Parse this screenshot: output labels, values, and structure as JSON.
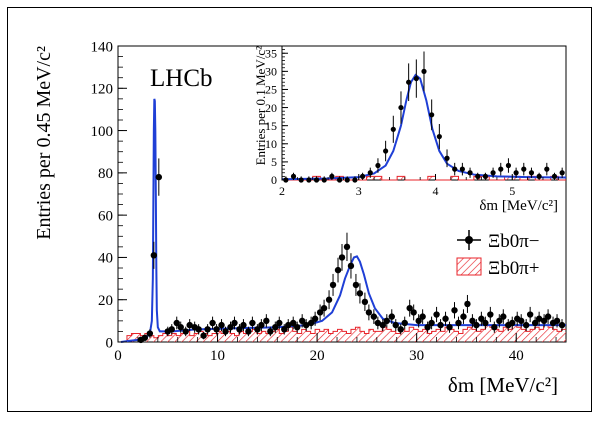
{
  "chart_data": [
    {
      "type": "scatter",
      "panel": "main",
      "experiment": "LHCb",
      "xlabel": "δm [MeV/c²]",
      "ylabel": "Entries per 0.45 MeV/c²",
      "xlim": [
        0,
        45
      ],
      "ylim": [
        0,
        140
      ],
      "xticks": [
        0,
        10,
        20,
        30,
        40
      ],
      "yticks": [
        0,
        20,
        40,
        60,
        80,
        100,
        120,
        140
      ],
      "grid": false,
      "legend_position": "right-middle",
      "legend": [
        {
          "label": "Ξb0π−",
          "style": "points-with-error-bars",
          "color": "#000000"
        },
        {
          "label": "Ξb0π+",
          "style": "hatched-histogram",
          "color": "#e8232a"
        }
      ],
      "series": [
        {
          "name": "Ξb0π−",
          "style": "points",
          "color": "#000000",
          "x": [
            2.3,
            2.7,
            3.2,
            3.6,
            4.1,
            5.0,
            5.4,
            5.9,
            6.3,
            6.8,
            7.2,
            7.7,
            8.1,
            8.6,
            9.0,
            9.5,
            9.9,
            10.4,
            10.8,
            11.3,
            11.7,
            12.2,
            12.6,
            13.1,
            13.5,
            14.0,
            14.4,
            14.9,
            15.3,
            15.8,
            16.2,
            16.7,
            17.1,
            17.6,
            18.0,
            18.5,
            18.9,
            19.4,
            19.8,
            20.3,
            20.7,
            21.2,
            21.6,
            22.1,
            22.5,
            23.0,
            23.4,
            23.9,
            24.3,
            24.8,
            25.2,
            25.7,
            26.1,
            26.6,
            27.0,
            27.5,
            27.9,
            28.4,
            28.8,
            29.3,
            29.7,
            30.2,
            30.6,
            31.1,
            31.5,
            32.0,
            32.4,
            32.9,
            33.3,
            33.8,
            34.2,
            34.7,
            35.1,
            35.6,
            36.0,
            36.5,
            36.9,
            37.4,
            37.8,
            38.3,
            38.7,
            39.2,
            39.6,
            40.1,
            40.5,
            41.0,
            41.4,
            41.9,
            42.3,
            42.8,
            43.2,
            43.7,
            44.1,
            44.6
          ],
          "y": [
            1,
            2,
            4,
            41,
            78,
            5,
            6,
            9,
            7,
            5,
            8,
            7,
            6,
            3,
            6,
            9,
            6,
            8,
            5,
            7,
            9,
            6,
            8,
            5,
            9,
            6,
            8,
            10,
            5,
            7,
            9,
            6,
            8,
            9,
            7,
            10,
            8,
            9,
            11,
            14,
            16,
            20,
            27,
            34,
            40,
            45,
            36,
            27,
            23,
            19,
            14,
            12,
            9,
            8,
            10,
            12,
            8,
            6,
            9,
            16,
            14,
            10,
            12,
            7,
            9,
            13,
            8,
            11,
            7,
            15,
            9,
            12,
            18,
            10,
            8,
            11,
            9,
            13,
            7,
            10,
            12,
            8,
            9,
            11,
            10,
            8,
            13,
            9,
            11,
            10,
            12,
            9,
            10,
            8
          ]
        },
        {
          "name": "Ξb0π+",
          "style": "hatched-histogram",
          "color": "#e8232a",
          "bin_width": 0.45,
          "x_start": 0.9,
          "values": [
            3,
            4,
            4,
            3,
            4,
            3,
            2,
            3,
            4,
            3,
            4,
            3,
            4,
            5,
            3,
            4,
            5,
            4,
            3,
            4,
            5,
            4,
            5,
            4,
            3,
            5,
            4,
            5,
            6,
            4,
            5,
            4,
            5,
            6,
            4,
            5,
            7,
            5,
            4,
            6,
            5,
            4,
            6,
            5,
            6,
            4,
            5,
            6,
            5,
            4,
            6,
            7,
            5,
            4,
            6,
            5,
            5,
            7,
            6,
            5,
            4,
            6,
            5,
            7,
            6,
            5,
            6,
            4,
            5,
            6,
            5,
            7,
            6,
            5,
            4,
            6,
            7,
            6,
            5,
            6,
            8,
            7,
            6,
            5,
            7,
            6,
            8,
            7,
            6,
            5,
            6,
            7,
            6,
            8,
            7,
            6,
            5,
            6,
            7
          ]
        },
        {
          "name": "fit",
          "style": "line",
          "color": "#1f3fd6",
          "x": [
            0.3,
            1.0,
            2.0,
            2.8,
            3.2,
            3.4,
            3.5,
            3.55,
            3.6,
            3.65,
            3.7,
            3.75,
            3.8,
            3.85,
            3.9,
            4.0,
            4.2,
            4.6,
            5.5,
            8.0,
            12.0,
            16.0,
            19.0,
            20.5,
            21.5,
            22.3,
            22.8,
            23.3,
            23.7,
            24.0,
            24.3,
            24.7,
            25.2,
            25.8,
            26.6,
            27.8,
            30.0,
            35.0,
            40.0,
            45.0
          ],
          "y": [
            0,
            0.5,
            1,
            2,
            4,
            10,
            30,
            65,
            100,
            115,
            114,
            100,
            70,
            35,
            15,
            7,
            5,
            5,
            5,
            6,
            6.5,
            7,
            8,
            10,
            14,
            22,
            30,
            36,
            40,
            40.5,
            38,
            32,
            23,
            16,
            11,
            9,
            8,
            8,
            8,
            8
          ]
        }
      ]
    },
    {
      "type": "scatter",
      "panel": "inset",
      "xlabel": "δm [MeV/c²]",
      "ylabel": "Entries per 0.1 MeV/c²",
      "xlim": [
        2,
        5.7
      ],
      "ylim": [
        0,
        37
      ],
      "xticks": [
        2,
        3,
        4,
        5
      ],
      "yticks": [
        0,
        5,
        10,
        15,
        20,
        25,
        30,
        35
      ],
      "grid": false,
      "series": [
        {
          "name": "Ξb0π−",
          "style": "points",
          "color": "#000000",
          "x": [
            2.05,
            2.15,
            2.25,
            2.35,
            2.45,
            2.55,
            2.65,
            2.75,
            2.85,
            2.95,
            3.05,
            3.15,
            3.25,
            3.35,
            3.45,
            3.55,
            3.65,
            3.75,
            3.85,
            3.95,
            4.05,
            4.15,
            4.25,
            4.35,
            4.45,
            4.55,
            4.65,
            4.75,
            4.85,
            4.95,
            5.05,
            5.15,
            5.25,
            5.35,
            5.45,
            5.55,
            5.65
          ],
          "y": [
            0,
            1,
            0,
            0,
            0,
            0,
            1,
            0,
            0,
            0,
            1,
            2,
            4,
            8,
            14,
            20,
            27,
            28,
            30,
            18,
            12,
            6,
            3,
            3,
            2,
            1,
            1,
            2,
            3,
            4,
            2,
            3,
            2,
            1,
            3,
            1,
            2
          ]
        },
        {
          "name": "Ξb0π+",
          "style": "hatched-histogram",
          "color": "#e8232a",
          "bin_width": 0.1,
          "x_start": 2.0,
          "values": [
            0,
            0,
            0,
            0,
            1,
            0,
            0,
            1,
            0,
            0,
            0,
            1,
            1,
            0,
            0,
            1,
            0,
            0,
            0,
            1,
            0,
            0,
            1,
            0,
            0,
            1,
            1,
            0,
            0,
            1,
            1,
            0,
            1,
            0,
            0,
            1,
            0
          ]
        },
        {
          "name": "fit",
          "style": "line",
          "color": "#1f3fd6",
          "x": [
            2.0,
            2.6,
            3.0,
            3.2,
            3.35,
            3.45,
            3.55,
            3.62,
            3.68,
            3.74,
            3.8,
            3.88,
            3.96,
            4.05,
            4.15,
            4.3,
            4.5,
            4.8,
            5.2,
            5.7
          ],
          "y": [
            0.2,
            0.4,
            0.8,
            1.8,
            4,
            8,
            15,
            22,
            27,
            29,
            28,
            22,
            14,
            8,
            4.5,
            2.5,
            1.5,
            1,
            0.8,
            0.7
          ]
        }
      ]
    }
  ]
}
